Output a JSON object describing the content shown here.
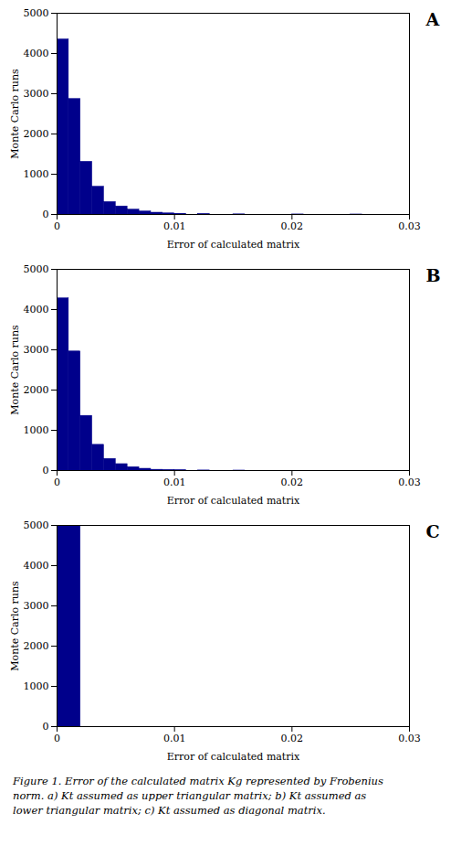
{
  "chart_data": [
    {
      "type": "bar",
      "title": "A",
      "x": [
        0.0,
        0.001,
        0.002,
        0.003,
        0.004,
        0.005,
        0.006,
        0.007,
        0.008,
        0.009,
        0.01,
        0.012,
        0.015,
        0.02,
        0.025
      ],
      "values": [
        4350,
        2870,
        1310,
        690,
        310,
        200,
        120,
        75,
        45,
        28,
        18,
        8,
        4,
        2,
        1
      ],
      "bar_width": 0.001,
      "color": "#00008B",
      "xlabel": "Error of calculated matrix",
      "ylabel": "Monte Carlo runs",
      "xlim": [
        0,
        0.03
      ],
      "ylim": [
        0,
        5000
      ],
      "xticks": [
        0,
        0.01,
        0.02,
        0.03
      ],
      "yticks": [
        0,
        1000,
        2000,
        3000,
        4000,
        5000
      ]
    },
    {
      "type": "bar",
      "title": "B",
      "x": [
        0.0,
        0.001,
        0.002,
        0.003,
        0.004,
        0.005,
        0.006,
        0.007,
        0.008,
        0.009,
        0.01,
        0.012,
        0.015,
        0.02,
        0.025
      ],
      "values": [
        4280,
        2960,
        1360,
        640,
        290,
        160,
        85,
        45,
        20,
        12,
        6,
        3,
        1,
        0,
        0
      ],
      "bar_width": 0.001,
      "color": "#00008B",
      "xlabel": "Error of calculated matrix",
      "ylabel": "Monte Carlo runs",
      "xlim": [
        0,
        0.03
      ],
      "ylim": [
        0,
        5000
      ],
      "xticks": [
        0,
        0.01,
        0.02,
        0.03
      ],
      "yticks": [
        0,
        1000,
        2000,
        3000,
        4000,
        5000
      ]
    },
    {
      "type": "bar",
      "title": "C",
      "x": [
        0.0,
        0.002
      ],
      "values": [
        5000,
        0
      ],
      "bar_width": 0.002,
      "color": "#00008B",
      "xlabel": "Error of calculated matrix",
      "ylabel": "Monte Carlo runs",
      "xlim": [
        0,
        0.03
      ],
      "ylim": [
        0,
        5000
      ],
      "xticks": [
        0,
        0.01,
        0.02,
        0.03
      ],
      "yticks": [
        0,
        1000,
        2000,
        3000,
        4000,
        5000
      ]
    }
  ],
  "caption": "Figure 1. Error of the calculated matrix Kg represented by Frobenius\nnorm. a) Kt assumed as upper triangular matrix; b) Kt assumed as\nlower triangular matrix; c) Kt assumed as diagonal matrix."
}
